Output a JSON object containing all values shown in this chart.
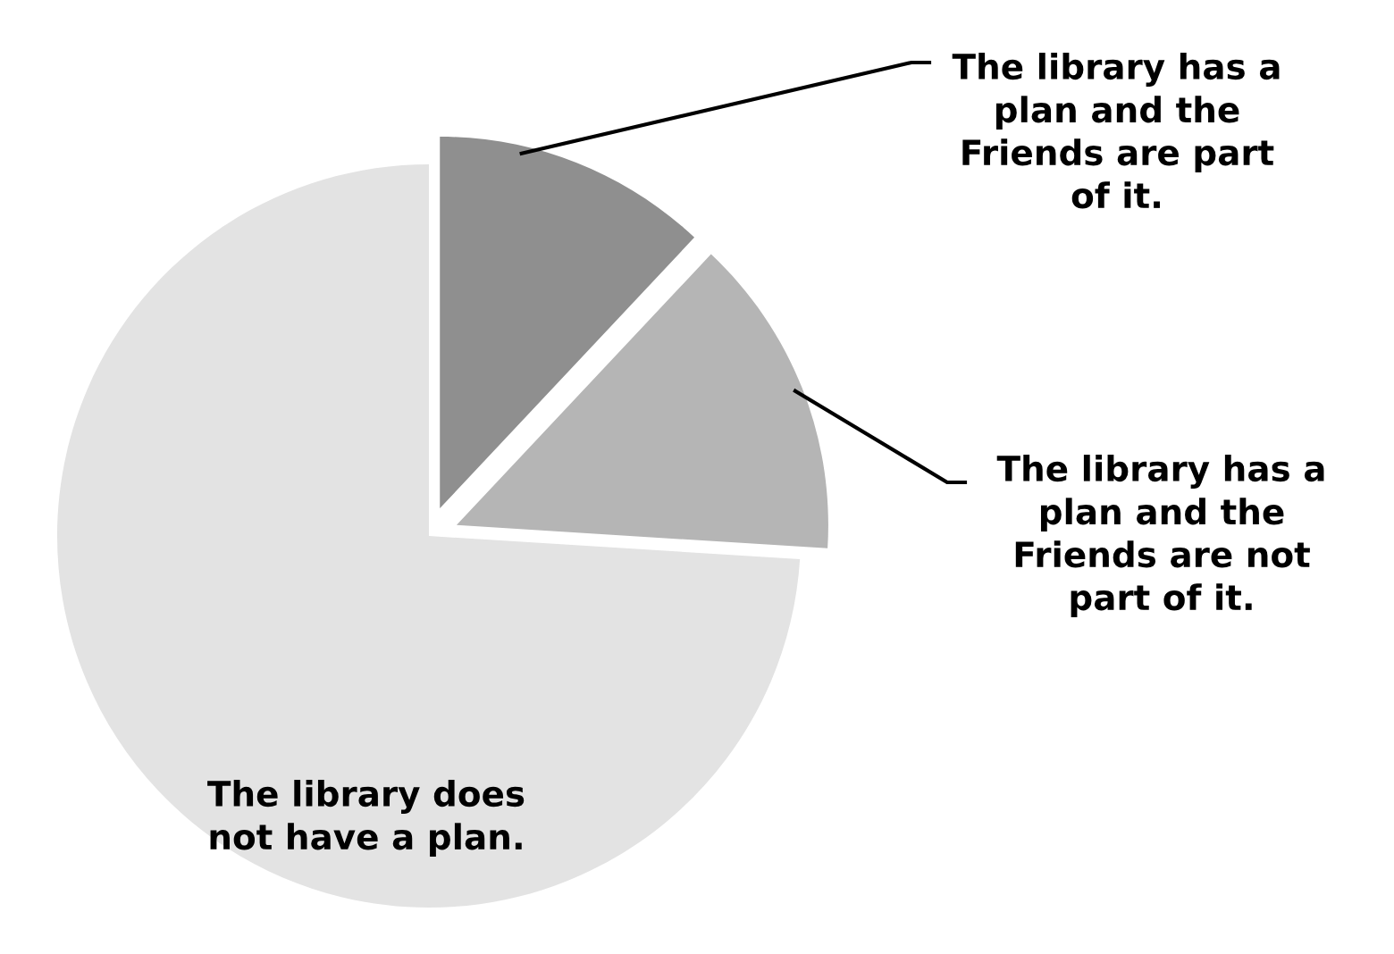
{
  "chart_data": {
    "type": "pie",
    "categories": [
      "The library has a\nplan and the\nFriends are part\nof it.",
      "The library has a\nplan and the\nFriends are not\npart of it.",
      "The library does\nnot have a plan."
    ],
    "values": [
      12,
      14,
      74
    ],
    "colors": [
      "#8f8f8f",
      "#b5b5b5",
      "#e3e3e3"
    ]
  }
}
